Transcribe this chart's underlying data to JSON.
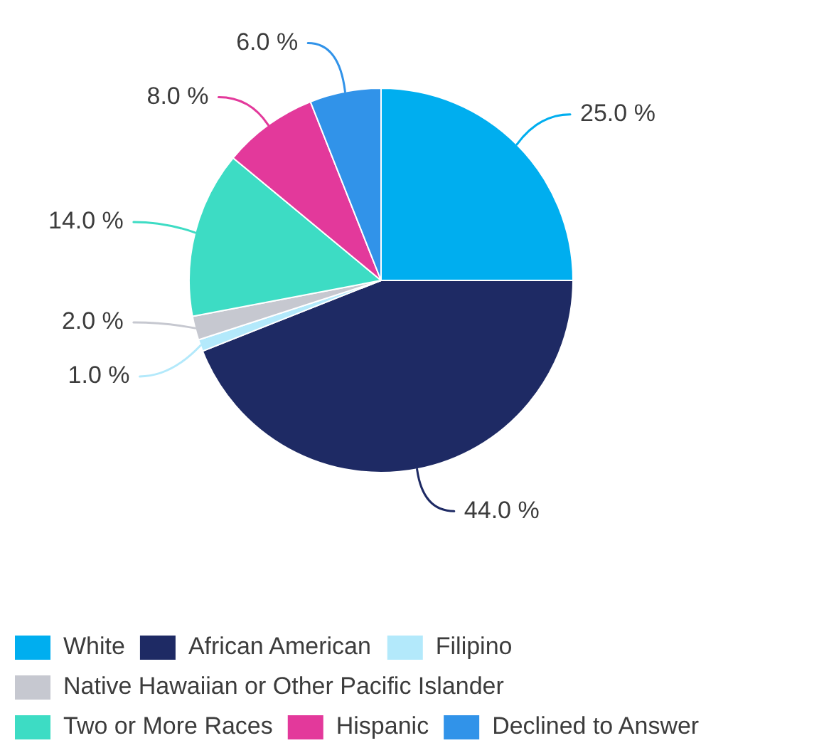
{
  "chart_data": {
    "type": "pie",
    "categories": [
      "White",
      "African American",
      "Filipino",
      "Native Hawaiian or Other Pacific Islander",
      "Two or More Races",
      "Hispanic",
      "Declined to Answer"
    ],
    "values": [
      25,
      44,
      1,
      2,
      14,
      8,
      6
    ],
    "colors": [
      "#00aeef",
      "#1e2a64",
      "#b3e9fb",
      "#c6c8d0",
      "#3ddcc4",
      "#e3399b",
      "#3193e9"
    ],
    "value_labels": [
      "25.0 %",
      "44.0 %",
      "1.0 %",
      "2.0 %",
      "14.0 %",
      "8.0 %",
      "6.0 %"
    ],
    "legend": "bottom left"
  }
}
